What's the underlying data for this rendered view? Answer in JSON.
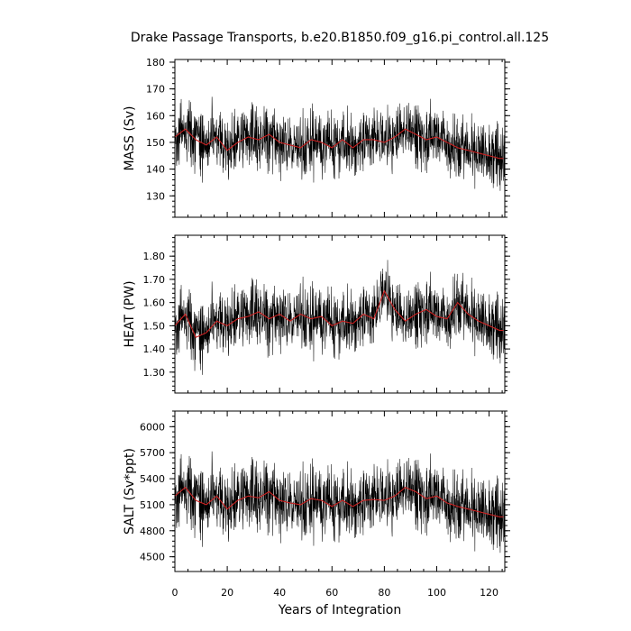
{
  "chart_data": {
    "type": "line",
    "title": "Drake Passage Transports, b.e20.B1850.f09_g16.pi_control.all.125",
    "xlabel": "Years of Integration",
    "xlim": [
      0,
      126
    ],
    "xticks": [
      0,
      20,
      40,
      60,
      80,
      100,
      120
    ],
    "xtick_labels": [
      "0",
      "20",
      "40",
      "60",
      "80",
      "100",
      "120"
    ],
    "grid": false,
    "series_style": {
      "raw": {
        "color": "#000000"
      },
      "smoothed": {
        "color": "#cc2222"
      }
    },
    "panels": [
      {
        "id": "mass",
        "ylabel": "MASS (Sv)",
        "ylim": [
          122,
          181
        ],
        "yticks": [
          130,
          140,
          150,
          160,
          170,
          180
        ],
        "ytick_labels": [
          "130",
          "140",
          "150",
          "160",
          "170",
          "180"
        ],
        "mean": 150.5,
        "noise_amp": 8.5,
        "smooth_points": [
          [
            0,
            152
          ],
          [
            4,
            155
          ],
          [
            8,
            151
          ],
          [
            12,
            149
          ],
          [
            16,
            152
          ],
          [
            20,
            147
          ],
          [
            24,
            150
          ],
          [
            28,
            152
          ],
          [
            32,
            151
          ],
          [
            36,
            153
          ],
          [
            40,
            150
          ],
          [
            44,
            149
          ],
          [
            48,
            148
          ],
          [
            52,
            151
          ],
          [
            56,
            150
          ],
          [
            60,
            148
          ],
          [
            64,
            151
          ],
          [
            68,
            148
          ],
          [
            72,
            151
          ],
          [
            76,
            151
          ],
          [
            80,
            150
          ],
          [
            84,
            152
          ],
          [
            88,
            155
          ],
          [
            92,
            153
          ],
          [
            96,
            151
          ],
          [
            100,
            152
          ],
          [
            104,
            150
          ],
          [
            108,
            148
          ],
          [
            112,
            147
          ],
          [
            116,
            146
          ],
          [
            120,
            145
          ],
          [
            124,
            144
          ]
        ]
      },
      {
        "id": "heat",
        "ylabel": "HEAT (PW)",
        "ylim": [
          1.21,
          1.89
        ],
        "yticks": [
          1.3,
          1.4,
          1.5,
          1.6,
          1.7,
          1.8
        ],
        "ytick_labels": [
          "1.30",
          "1.40",
          "1.50",
          "1.60",
          "1.70",
          "1.80"
        ],
        "mean": 1.53,
        "noise_amp": 0.1,
        "smooth_points": [
          [
            0,
            1.5
          ],
          [
            4,
            1.55
          ],
          [
            8,
            1.45
          ],
          [
            12,
            1.47
          ],
          [
            16,
            1.52
          ],
          [
            20,
            1.5
          ],
          [
            24,
            1.53
          ],
          [
            28,
            1.54
          ],
          [
            32,
            1.56
          ],
          [
            36,
            1.53
          ],
          [
            40,
            1.55
          ],
          [
            44,
            1.52
          ],
          [
            48,
            1.55
          ],
          [
            52,
            1.53
          ],
          [
            56,
            1.54
          ],
          [
            60,
            1.5
          ],
          [
            64,
            1.52
          ],
          [
            68,
            1.51
          ],
          [
            72,
            1.55
          ],
          [
            76,
            1.53
          ],
          [
            80,
            1.65
          ],
          [
            84,
            1.57
          ],
          [
            88,
            1.52
          ],
          [
            92,
            1.55
          ],
          [
            96,
            1.57
          ],
          [
            100,
            1.54
          ],
          [
            104,
            1.53
          ],
          [
            108,
            1.6
          ],
          [
            112,
            1.55
          ],
          [
            116,
            1.52
          ],
          [
            120,
            1.5
          ],
          [
            124,
            1.48
          ]
        ]
      },
      {
        "id": "salt",
        "ylabel": "SALT (Sv*ppt)",
        "ylim": [
          4330,
          6180
        ],
        "yticks": [
          4500,
          4800,
          5100,
          5400,
          5700,
          6000
        ],
        "ytick_labels": [
          "4500",
          "4800",
          "5100",
          "5400",
          "5700",
          "6000"
        ],
        "mean": 5120,
        "noise_amp": 290,
        "smooth_points": [
          [
            0,
            5200
          ],
          [
            4,
            5300
          ],
          [
            8,
            5150
          ],
          [
            12,
            5100
          ],
          [
            16,
            5200
          ],
          [
            20,
            5050
          ],
          [
            24,
            5150
          ],
          [
            28,
            5200
          ],
          [
            32,
            5180
          ],
          [
            36,
            5250
          ],
          [
            40,
            5150
          ],
          [
            44,
            5120
          ],
          [
            48,
            5100
          ],
          [
            52,
            5170
          ],
          [
            56,
            5150
          ],
          [
            60,
            5080
          ],
          [
            64,
            5150
          ],
          [
            68,
            5080
          ],
          [
            72,
            5150
          ],
          [
            76,
            5160
          ],
          [
            80,
            5150
          ],
          [
            84,
            5200
          ],
          [
            88,
            5300
          ],
          [
            92,
            5250
          ],
          [
            96,
            5170
          ],
          [
            100,
            5200
          ],
          [
            104,
            5120
          ],
          [
            108,
            5080
          ],
          [
            112,
            5050
          ],
          [
            116,
            5020
          ],
          [
            120,
            4990
          ],
          [
            124,
            4960
          ]
        ]
      }
    ]
  }
}
